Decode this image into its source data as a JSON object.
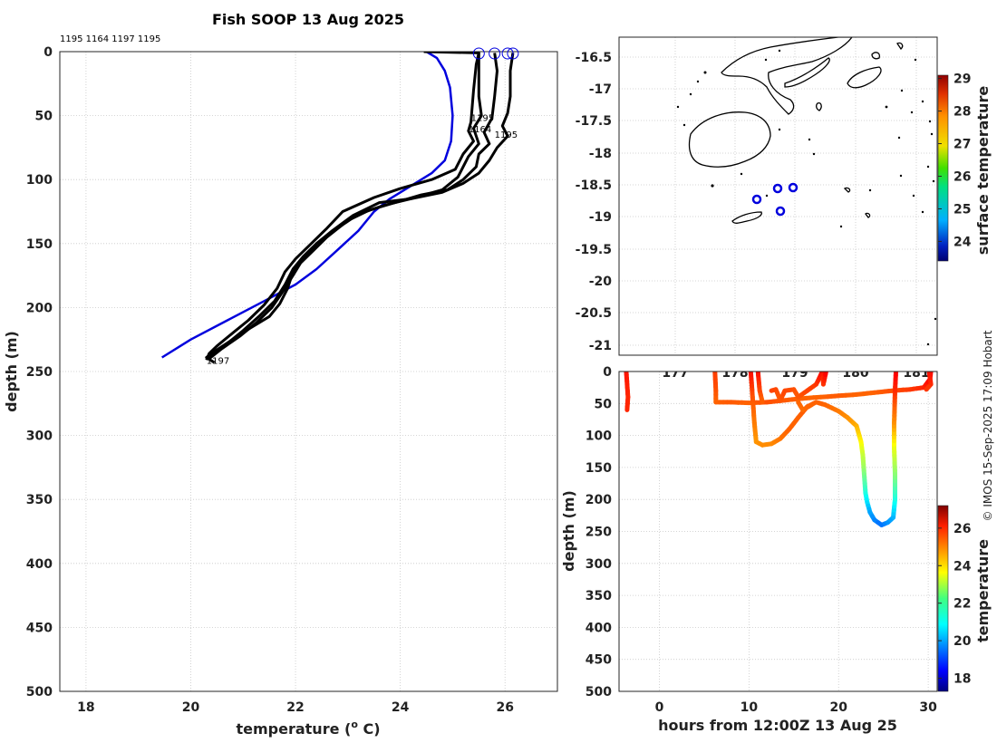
{
  "title": "Fish SOOP 13 Aug 2025",
  "credit": "© IMOS 15-Sep-2025 17:09 Hobart",
  "chart_data": [
    {
      "type": "line",
      "panel": "profile",
      "xlabel": "temperature (° C)",
      "xlabel_main": "temperature (",
      "xlabel_sup": "o",
      "xlabel_tail": " C)",
      "ylabel": "depth (m)",
      "xlim": [
        17.5,
        27
      ],
      "ylim": [
        0,
        500
      ],
      "xticks": [
        18,
        20,
        22,
        24,
        26
      ],
      "yticks": [
        0,
        50,
        100,
        150,
        200,
        250,
        300,
        350,
        400,
        450,
        500
      ],
      "top_labels": "1195 1164 1197 1195",
      "profile_labels": [
        {
          "text": "1195",
          "x": 25.35,
          "y": 52
        },
        {
          "text": "1164",
          "x": 25.3,
          "y": 61
        },
        {
          "text": "1195",
          "x": 25.8,
          "y": 65
        },
        {
          "text": "1197",
          "x": 20.3,
          "y": 242
        }
      ],
      "surface_markers_temp": [
        25.5,
        25.8,
        26.05,
        26.15
      ],
      "series": [
        {
          "name": "climatology",
          "color": "#0000dd",
          "points": [
            [
              24.5,
              0
            ],
            [
              24.7,
              5
            ],
            [
              24.85,
              15
            ],
            [
              24.95,
              28
            ],
            [
              25.0,
              50
            ],
            [
              24.97,
              70
            ],
            [
              24.85,
              85
            ],
            [
              24.6,
              95
            ],
            [
              24.2,
              105
            ],
            [
              23.8,
              115
            ],
            [
              23.5,
              125
            ],
            [
              23.2,
              140
            ],
            [
              22.8,
              155
            ],
            [
              22.4,
              170
            ],
            [
              22.0,
              182
            ],
            [
              21.4,
              195
            ],
            [
              20.7,
              210
            ],
            [
              20.0,
              225
            ],
            [
              19.45,
              239
            ]
          ]
        },
        {
          "name": "profile-1",
          "color": "#000000",
          "points": [
            [
              24.45,
              0
            ],
            [
              25.5,
              1
            ],
            [
              25.45,
              10
            ],
            [
              25.4,
              30
            ],
            [
              25.35,
              55
            ],
            [
              25.3,
              62
            ],
            [
              25.4,
              70
            ],
            [
              25.2,
              80
            ],
            [
              25.05,
              92
            ],
            [
              24.6,
              100
            ],
            [
              24.0,
              107
            ],
            [
              23.5,
              114
            ],
            [
              22.9,
              125
            ],
            [
              22.6,
              138
            ],
            [
              22.3,
              150
            ],
            [
              22.0,
              162
            ],
            [
              21.8,
              172
            ],
            [
              21.65,
              185
            ],
            [
              21.4,
              198
            ],
            [
              21.1,
              210
            ],
            [
              20.8,
              220
            ],
            [
              20.5,
              230
            ],
            [
              20.35,
              236
            ],
            [
              20.3,
              241
            ]
          ]
        },
        {
          "name": "profile-2",
          "color": "#000000",
          "points": [
            [
              25.5,
              1
            ],
            [
              25.5,
              15
            ],
            [
              25.5,
              35
            ],
            [
              25.55,
              50
            ],
            [
              25.4,
              60
            ],
            [
              25.5,
              72
            ],
            [
              25.3,
              82
            ],
            [
              25.1,
              98
            ],
            [
              24.8,
              108
            ],
            [
              24.2,
              115
            ],
            [
              23.6,
              118
            ],
            [
              23.1,
              128
            ],
            [
              22.7,
              140
            ],
            [
              22.4,
              150
            ],
            [
              22.2,
              160
            ],
            [
              21.95,
              172
            ],
            [
              21.85,
              185
            ],
            [
              21.7,
              197
            ],
            [
              21.5,
              207
            ],
            [
              21.1,
              217
            ],
            [
              20.8,
              225
            ],
            [
              20.5,
              233
            ],
            [
              20.3,
              239
            ],
            [
              20.45,
              243
            ]
          ]
        },
        {
          "name": "profile-3",
          "color": "#000000",
          "points": [
            [
              25.8,
              1
            ],
            [
              25.85,
              15
            ],
            [
              25.8,
              35
            ],
            [
              25.75,
              52
            ],
            [
              25.6,
              63
            ],
            [
              25.7,
              72
            ],
            [
              25.5,
              80
            ],
            [
              25.45,
              90
            ],
            [
              25.2,
              100
            ],
            [
              24.9,
              108
            ],
            [
              24.4,
              112
            ],
            [
              23.9,
              118
            ],
            [
              23.4,
              124
            ],
            [
              23.0,
              132
            ],
            [
              22.6,
              145
            ],
            [
              22.35,
              155
            ],
            [
              22.1,
              165
            ],
            [
              21.95,
              175
            ],
            [
              21.75,
              188
            ],
            [
              21.55,
              200
            ],
            [
              21.25,
              212
            ],
            [
              20.95,
              222
            ],
            [
              20.6,
              232
            ],
            [
              20.35,
              240
            ]
          ]
        },
        {
          "name": "profile-4",
          "color": "#000000",
          "points": [
            [
              26.15,
              1
            ],
            [
              26.1,
              15
            ],
            [
              26.1,
              35
            ],
            [
              26.05,
              48
            ],
            [
              25.95,
              58
            ],
            [
              26.05,
              66
            ],
            [
              25.85,
              75
            ],
            [
              25.7,
              85
            ],
            [
              25.5,
              95
            ],
            [
              25.2,
              103
            ],
            [
              24.8,
              110
            ],
            [
              24.2,
              115
            ],
            [
              23.7,
              120
            ],
            [
              23.2,
              127
            ],
            [
              22.8,
              138
            ],
            [
              22.4,
              150
            ],
            [
              22.15,
              160
            ],
            [
              21.95,
              170
            ],
            [
              21.8,
              182
            ],
            [
              21.6,
              195
            ],
            [
              21.3,
              207
            ],
            [
              21.0,
              218
            ],
            [
              20.7,
              228
            ],
            [
              20.4,
              236
            ]
          ]
        }
      ]
    },
    {
      "type": "map",
      "panel": "map",
      "xticks": [
        "177",
        "178",
        "179",
        "180",
        "181"
      ],
      "yticks": [
        "-16.5",
        "-17",
        "-17.5",
        "-18",
        "-18.5",
        "-19",
        "-19.5",
        "-20",
        "-20.5",
        "-21"
      ],
      "colorbar_label": "surface temperature",
      "colorbar_ticks": [
        "24",
        "25",
        "26",
        "27",
        "28",
        "29"
      ],
      "colorbar_range": [
        23.4,
        29.1
      ]
    },
    {
      "type": "scatter",
      "panel": "section",
      "xlabel": "hours from 12:00Z 13 Aug 25",
      "ylabel": "depth (m)",
      "xlim": [
        -4.5,
        31
      ],
      "ylim": [
        0,
        500
      ],
      "xticks": [
        0,
        10,
        20,
        30
      ],
      "yticks": [
        0,
        50,
        100,
        150,
        200,
        250,
        300,
        350,
        400,
        450,
        500
      ],
      "colorbar_label": "temperature",
      "colorbar_ticks": [
        "18",
        "20",
        "22",
        "24",
        "26"
      ],
      "colorbar_range": [
        17.3,
        27.2
      ]
    }
  ]
}
